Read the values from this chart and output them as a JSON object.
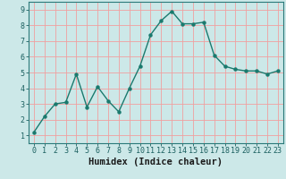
{
  "x": [
    0,
    1,
    2,
    3,
    4,
    5,
    6,
    7,
    8,
    9,
    10,
    11,
    12,
    13,
    14,
    15,
    16,
    17,
    18,
    19,
    20,
    21,
    22,
    23
  ],
  "y": [
    1.2,
    2.2,
    3.0,
    3.1,
    4.9,
    2.8,
    4.1,
    3.2,
    2.5,
    4.0,
    5.4,
    7.4,
    8.3,
    8.9,
    8.1,
    8.1,
    8.2,
    6.1,
    5.4,
    5.2,
    5.1,
    5.1,
    4.9,
    5.1
  ],
  "line_color": "#1a7a6e",
  "marker": "o",
  "marker_size": 2.2,
  "bg_color": "#cce8e8",
  "grid_color": "#f0a0a0",
  "xlabel": "Humidex (Indice chaleur)",
  "xlim": [
    -0.5,
    23.5
  ],
  "ylim": [
    0.5,
    9.5
  ],
  "yticks": [
    1,
    2,
    3,
    4,
    5,
    6,
    7,
    8,
    9
  ],
  "xticks": [
    0,
    1,
    2,
    3,
    4,
    5,
    6,
    7,
    8,
    9,
    10,
    11,
    12,
    13,
    14,
    15,
    16,
    17,
    18,
    19,
    20,
    21,
    22,
    23
  ],
  "xtick_labels": [
    "0",
    "1",
    "2",
    "3",
    "4",
    "5",
    "6",
    "7",
    "8",
    "9",
    "10",
    "11",
    "12",
    "13",
    "14",
    "15",
    "16",
    "17",
    "18",
    "19",
    "20",
    "21",
    "22",
    "23"
  ],
  "tick_fontsize": 6,
  "xlabel_fontsize": 7.5,
  "line_width": 1.0,
  "tick_color": "#1a5f5f",
  "xlabel_color": "#1a1a1a",
  "spine_color": "#2a7a7a"
}
